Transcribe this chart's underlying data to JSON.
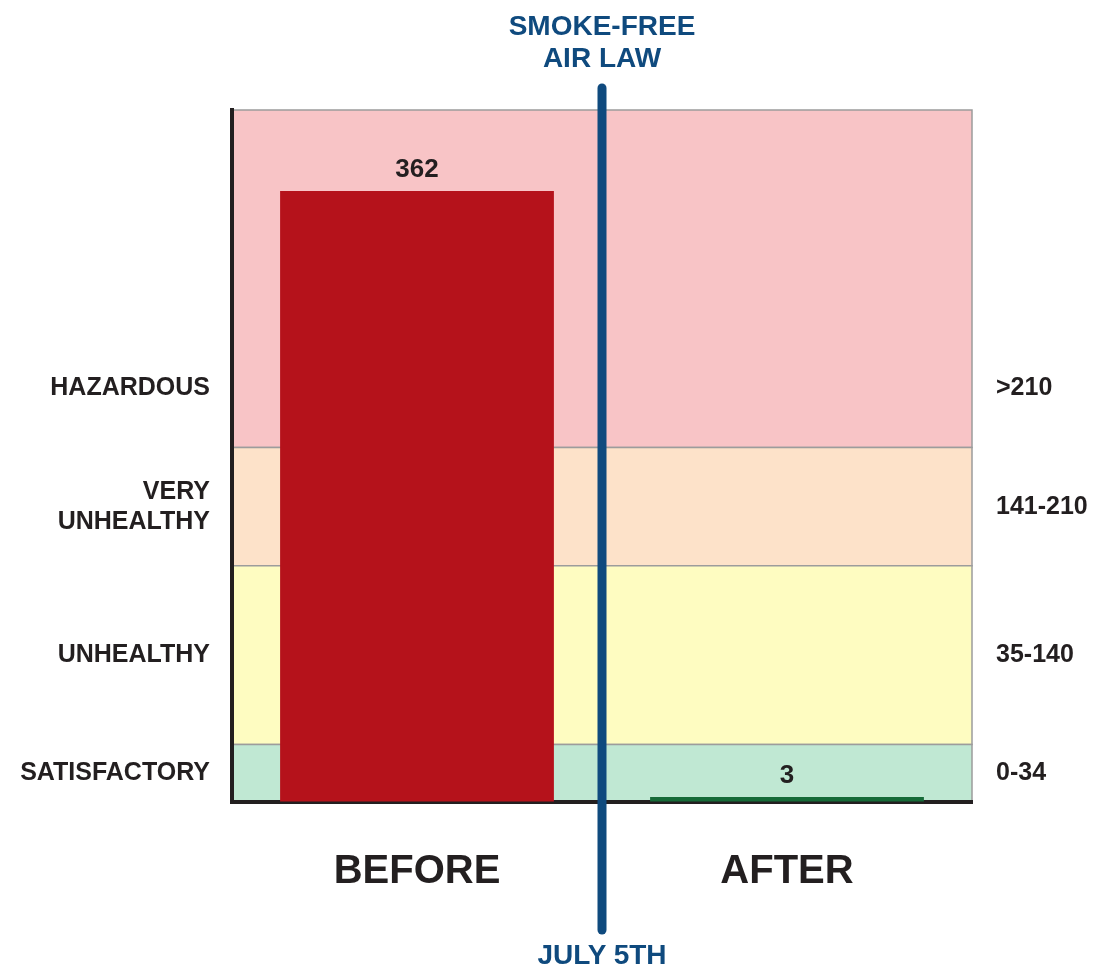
{
  "chart_data": {
    "type": "bar",
    "categories": [
      "BEFORE",
      "AFTER"
    ],
    "values": [
      362,
      3
    ],
    "colors": [
      "#b5121b",
      "#176b38"
    ],
    "data_labels": true,
    "ylim": [
      0,
      410
    ],
    "bands": [
      {
        "axis": "y",
        "from": 210,
        "to": 410,
        "color": "#f8c4c6",
        "label": "HAZARDOUS"
      },
      {
        "axis": "y",
        "from": 140,
        "to": 210,
        "color": "#fde2c9",
        "label": "VERY UNHEALTHY"
      },
      {
        "axis": "y",
        "from": 34,
        "to": 140,
        "color": "#fefcc1",
        "label": "UNHEALTHY"
      },
      {
        "axis": "y",
        "from": 0,
        "to": 34,
        "color": "#c0e8d3",
        "label": "SATISFACTORY"
      }
    ],
    "ref_lines": [
      {
        "axis": "x",
        "value": "AFTER",
        "label": "JULY 5TH",
        "color": "#0f4a7e"
      }
    ],
    "annotations": [
      "SMOKE-FREE AIR LAW",
      ">210",
      "141-210",
      "35-140",
      "0-34"
    ],
    "grid": false,
    "legend": false
  }
}
